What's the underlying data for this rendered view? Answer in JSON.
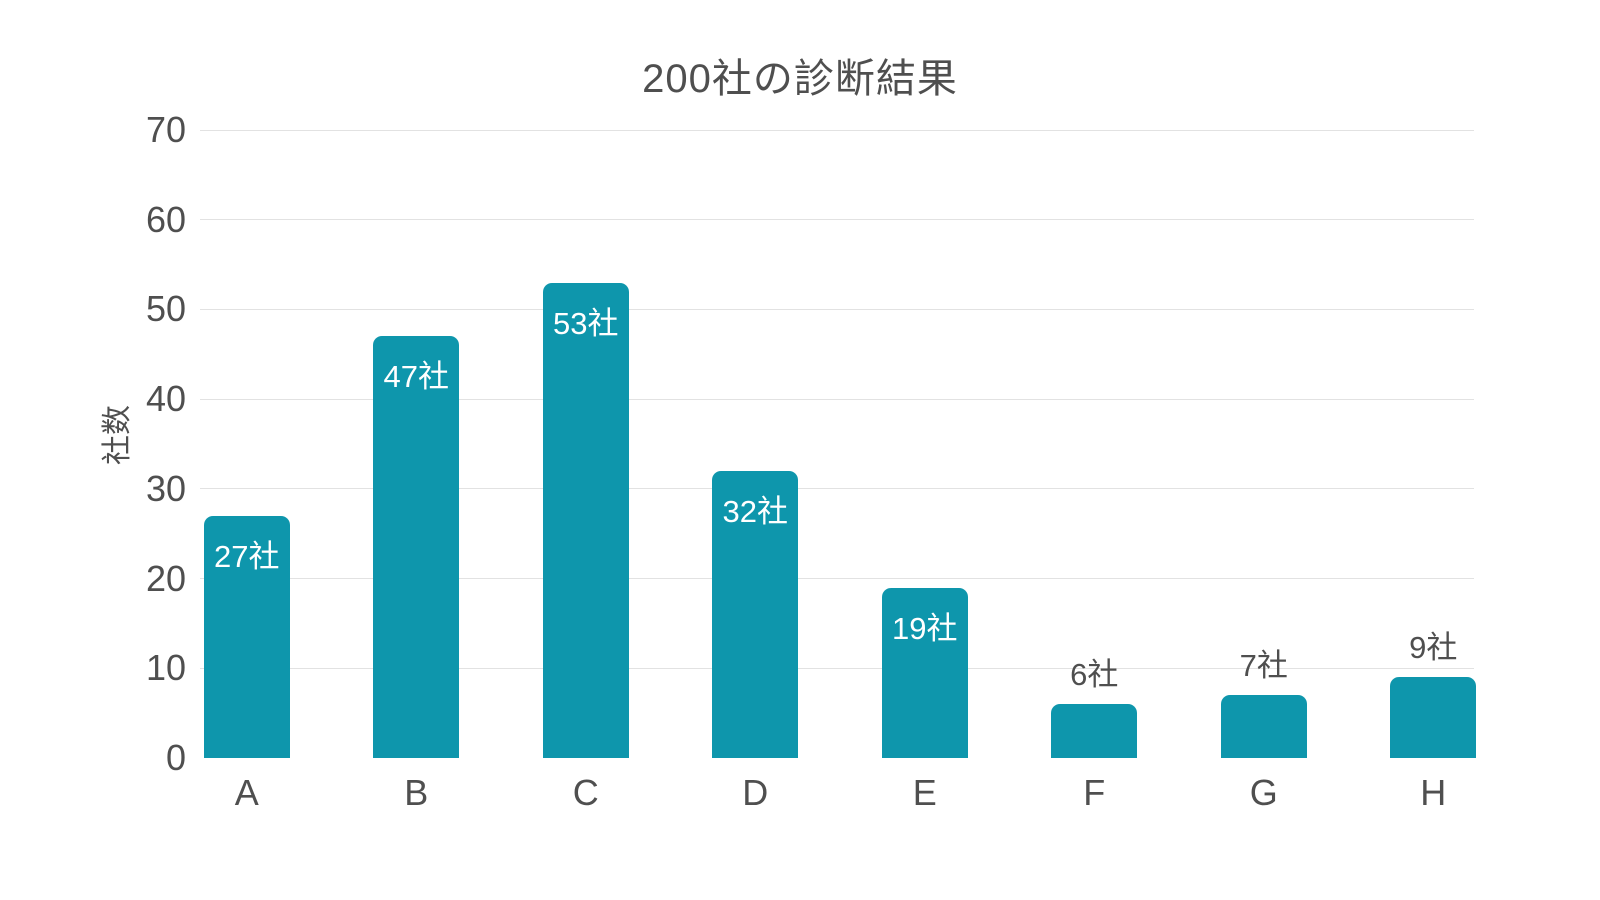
{
  "page": {
    "title": "200社の診断結果"
  },
  "colors": {
    "bar": "#0e96ac",
    "grid": "#e2e2e2",
    "text": "#4f4f4f",
    "bar_label_inside": "#ffffff"
  },
  "chart_data": {
    "type": "bar",
    "title": "200社の診断結果",
    "categories": [
      "A",
      "B",
      "C",
      "D",
      "E",
      "F",
      "G",
      "H"
    ],
    "values": [
      27,
      47,
      53,
      32,
      19,
      6,
      7,
      9
    ],
    "bar_labels": [
      "27社",
      "47社",
      "53社",
      "32社",
      "19社",
      "6社",
      "7社",
      "9社"
    ],
    "xlabel": "",
    "ylabel": "社数",
    "ylim": [
      0,
      70
    ],
    "yticks": [
      0,
      10,
      20,
      30,
      40,
      50,
      60,
      70
    ],
    "grid": "horizontal gridlines at each y tick, no gridline at 0, no axis lines",
    "legend": "none",
    "bar_label_position": "white label inside top of bar for large values; gray label above bar for small values (6, 7, 9)"
  }
}
